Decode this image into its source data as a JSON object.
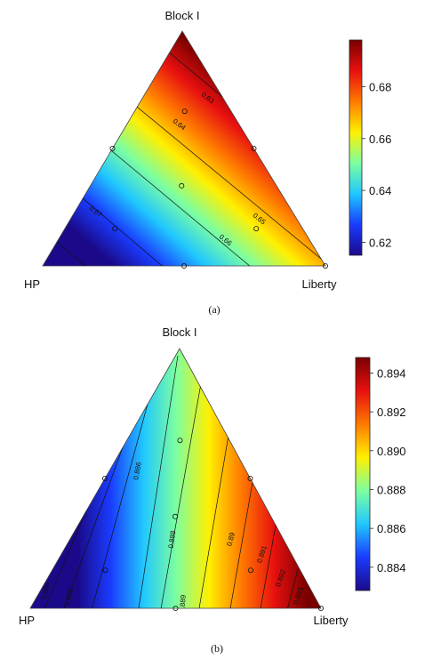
{
  "chart_data": [
    {
      "type": "ternary-contour",
      "caption": "(a)",
      "vertices": {
        "top": "Block I",
        "left": "HP",
        "right": "Liberty"
      },
      "colorbar": {
        "ticks": [
          "0.62",
          "0.64",
          "0.66",
          "0.68"
        ],
        "min": 0.615,
        "max": 0.698,
        "colors": [
          "#1a0a8a",
          "#1a3cff",
          "#20c8ff",
          "#7dffa0",
          "#fff000",
          "#ff7a00",
          "#e81010",
          "#7a0000"
        ]
      },
      "contour_labels": [
        "0.63",
        "0.64",
        "0.65",
        "0.66",
        "0.67"
      ],
      "design_points": [
        [
          0.33,
          0.33,
          0.33
        ],
        [
          0.5,
          0.5,
          0
        ],
        [
          0.5,
          0,
          0.5
        ],
        [
          0,
          0.5,
          0.5
        ],
        [
          0.17,
          0.67,
          0.17
        ],
        [
          0.17,
          0.17,
          0.67
        ],
        [
          0.67,
          0.17,
          0.17
        ],
        [
          0,
          0,
          1
        ]
      ]
    },
    {
      "type": "ternary-contour",
      "caption": "(b)",
      "vertices": {
        "top": "Block I",
        "left": "HP",
        "right": "Liberty"
      },
      "colorbar": {
        "ticks": [
          "0.884",
          "0.886",
          "0.888",
          "0.890",
          "0.892",
          "0.894"
        ],
        "min": 0.8828,
        "max": 0.8948,
        "colors": [
          "#1a0a8a",
          "#1a3cff",
          "#20c8ff",
          "#7dffa0",
          "#fff000",
          "#ff7a00",
          "#e81010",
          "#7a0000"
        ]
      },
      "contour_labels": [
        "0.885",
        "0.886",
        "0.888",
        "0.889",
        "0.89",
        "0.891",
        "0.892",
        "0.893",
        "0.884"
      ],
      "design_points": [
        [
          0.33,
          0.33,
          0.33
        ],
        [
          0.5,
          0.5,
          0
        ],
        [
          0.5,
          0,
          0.5
        ],
        [
          0,
          0.5,
          0.5
        ],
        [
          0.17,
          0.67,
          0.17
        ],
        [
          0.17,
          0.17,
          0.67
        ],
        [
          0.67,
          0.17,
          0.17
        ],
        [
          0,
          0,
          1
        ]
      ]
    }
  ]
}
